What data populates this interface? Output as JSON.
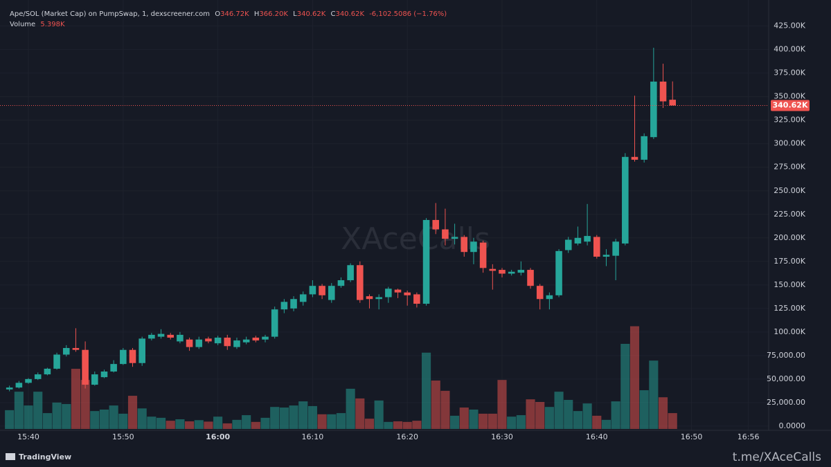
{
  "chart_data": {
    "type": "candlestick",
    "header": {
      "title": "Ape/SOL (Market Cap) on PumpSwap, 1, dexscreener.com",
      "open_key": "O",
      "open": "346.72K",
      "high_key": "H",
      "high": "366.20K",
      "low_key": "L",
      "low": "340.62K",
      "close_key": "C",
      "close": "340.62K",
      "change": "-6,102.5086 (−1.76%)",
      "volume_key": "Volume",
      "volume": "5.398K"
    },
    "last_price_label": "340.62K",
    "watermark": "XAceCalls",
    "brand": "TradingView",
    "footer": "t.me/XAceCalls",
    "up_color": "#26a69a",
    "down_color": "#ef5350",
    "x": [
      "15:38",
      "15:39",
      "15:40",
      "15:41",
      "15:42",
      "15:43",
      "15:44",
      "15:45",
      "15:46",
      "15:47",
      "15:48",
      "15:49",
      "15:50",
      "15:51",
      "15:52",
      "15:53",
      "15:54",
      "15:55",
      "15:56",
      "15:57",
      "15:58",
      "15:59",
      "16:00",
      "16:01",
      "16:02",
      "16:03",
      "16:04",
      "16:05",
      "16:06",
      "16:07",
      "16:08",
      "16:09",
      "16:10",
      "16:11",
      "16:12",
      "16:13",
      "16:14",
      "16:15",
      "16:16",
      "16:17",
      "16:18",
      "16:19",
      "16:20",
      "16:21",
      "16:22",
      "16:23",
      "16:24",
      "16:25",
      "16:26",
      "16:27",
      "16:28",
      "16:29",
      "16:30",
      "16:31",
      "16:32",
      "16:33",
      "16:34",
      "16:35",
      "16:36",
      "16:37",
      "16:38",
      "16:39",
      "16:40",
      "16:41",
      "16:42",
      "16:43",
      "16:44",
      "16:45",
      "16:46",
      "16:47",
      "16:48"
    ],
    "open": [
      39000,
      41000,
      46000,
      50000,
      55000,
      61000,
      76000,
      83000,
      81000,
      44000,
      52000,
      58000,
      66000,
      81000,
      67000,
      93000,
      95000,
      97000,
      90000,
      92000,
      84000,
      93000,
      88000,
      94000,
      84000,
      89000,
      94000,
      92000,
      95000,
      124000,
      125000,
      132000,
      140000,
      149000,
      134000,
      149000,
      155000,
      171000,
      138000,
      135000,
      137000,
      145000,
      142000,
      140000,
      130000,
      219000,
      209000,
      199000,
      201000,
      185000,
      195000,
      167000,
      166000,
      162000,
      163000,
      166000,
      149000,
      135000,
      139000,
      187000,
      194000,
      196000,
      201000,
      180000,
      181000,
      194000,
      286000,
      283000,
      307000,
      366000,
      346720
    ],
    "high": [
      43000,
      48000,
      51000,
      57000,
      62000,
      78000,
      86000,
      104000,
      90000,
      58000,
      60000,
      70000,
      83000,
      83000,
      95000,
      99000,
      103000,
      99000,
      100000,
      94000,
      95000,
      95000,
      96000,
      97000,
      94000,
      95000,
      96000,
      97000,
      127000,
      135000,
      138000,
      143000,
      155000,
      151000,
      152000,
      158000,
      173000,
      175000,
      140000,
      140000,
      148000,
      146000,
      144000,
      142000,
      221000,
      237000,
      231000,
      215000,
      203000,
      200000,
      197000,
      172000,
      168000,
      166000,
      175000,
      168000,
      151000,
      142000,
      188000,
      201000,
      212000,
      236000,
      203000,
      188000,
      199000,
      290000,
      351000,
      311000,
      402000,
      385000,
      366200
    ],
    "low": [
      37000,
      40000,
      45000,
      49000,
      54000,
      60000,
      74000,
      79000,
      40000,
      43000,
      51000,
      57000,
      65000,
      63000,
      64000,
      91000,
      93000,
      92000,
      88000,
      80000,
      82000,
      88000,
      86000,
      81000,
      82000,
      87000,
      89000,
      89000,
      93000,
      120000,
      122000,
      128000,
      137000,
      135000,
      131000,
      147000,
      153000,
      131000,
      125000,
      124000,
      131000,
      136000,
      128000,
      126000,
      128000,
      204000,
      192000,
      193000,
      180000,
      172000,
      163000,
      145000,
      158000,
      160000,
      160000,
      146000,
      124000,
      124000,
      137000,
      184000,
      192000,
      192000,
      178000,
      170000,
      155000,
      192000,
      281000,
      280000,
      305000,
      338000,
      340620
    ],
    "close": [
      41000,
      46000,
      50000,
      55000,
      61000,
      76000,
      83000,
      81000,
      44000,
      55000,
      58000,
      66000,
      81000,
      67000,
      93000,
      97000,
      98000,
      94000,
      97000,
      84000,
      92000,
      90000,
      94000,
      85000,
      91000,
      92000,
      91000,
      95000,
      124000,
      132000,
      135000,
      140000,
      149000,
      139000,
      149000,
      155000,
      171000,
      134000,
      135000,
      137000,
      146000,
      142000,
      139000,
      130000,
      219000,
      209000,
      199000,
      201000,
      185000,
      196000,
      168000,
      165000,
      162000,
      164000,
      166000,
      149000,
      135000,
      139000,
      186000,
      198000,
      200000,
      202000,
      180000,
      182000,
      196000,
      286000,
      283000,
      308000,
      366000,
      345000,
      340620
    ],
    "volume": [
      6400,
      12700,
      8000,
      12700,
      5400,
      9000,
      8500,
      20500,
      16700,
      6100,
      6600,
      8000,
      5200,
      11300,
      7000,
      4200,
      3800,
      2800,
      3300,
      2600,
      3000,
      2500,
      4200,
      1900,
      3100,
      4700,
      2400,
      3800,
      7500,
      7300,
      8000,
      9400,
      7800,
      5000,
      5000,
      5400,
      13700,
      10400,
      3500,
      9700,
      2400,
      2600,
      2400,
      2800,
      26000,
      16500,
      13000,
      4500,
      7300,
      6600,
      5200,
      5200,
      16700,
      4200,
      4700,
      10100,
      9200,
      7500,
      12700,
      9900,
      6100,
      8700,
      4500,
      3100,
      9400,
      29000,
      35000,
      13200,
      23300,
      10800,
      5398
    ],
    "xlim": [
      "15:37",
      "16:58"
    ],
    "xticks": [
      "15:40",
      "15:50",
      "16:00",
      "16:10",
      "16:20",
      "16:30",
      "16:40",
      "16:50",
      "16:56"
    ],
    "ylim": [
      -3000,
      449000
    ],
    "volume_ylim": [
      0,
      145000
    ],
    "yticks": [
      {
        "value": 0,
        "label": "0.0000"
      },
      {
        "value": 25000,
        "label": "25,000.00"
      },
      {
        "value": 50000,
        "label": "50,000.00"
      },
      {
        "value": 75000,
        "label": "75,000.00"
      },
      {
        "value": 100000,
        "label": "100.00K"
      },
      {
        "value": 125000,
        "label": "125.00K"
      },
      {
        "value": 150000,
        "label": "150.00K"
      },
      {
        "value": 175000,
        "label": "175.00K"
      },
      {
        "value": 200000,
        "label": "200.00K"
      },
      {
        "value": 225000,
        "label": "225.00K"
      },
      {
        "value": 250000,
        "label": "250.00K"
      },
      {
        "value": 275000,
        "label": "275.00K"
      },
      {
        "value": 300000,
        "label": "300.00K"
      },
      {
        "value": 325000,
        "label": "325.00K"
      },
      {
        "value": 350000,
        "label": "350.00K"
      },
      {
        "value": 375000,
        "label": "375.00K"
      },
      {
        "value": 400000,
        "label": "400.00K"
      },
      {
        "value": 425000,
        "label": "425.00K"
      }
    ],
    "grid": true
  }
}
